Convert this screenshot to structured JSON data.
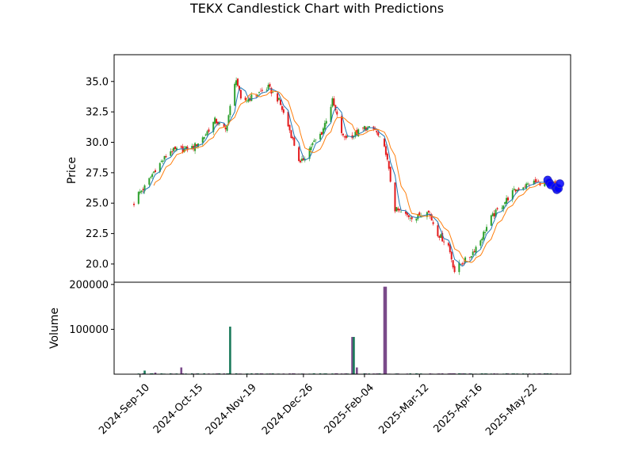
{
  "chart_data": {
    "type": "candlestick",
    "title": "TEKX Candlestick Chart with Predictions",
    "colors": {
      "up": "#2ca02c",
      "down": "#e41a1c",
      "ma_fast": "#1f77b4",
      "ma_slow": "#ff7f0e",
      "prediction": "#0000ff",
      "volume_up": "#1a7a5a",
      "volume_down": "#7a4a8a"
    },
    "price_panel": {
      "ylabel": "Price",
      "ylim": [
        18.5,
        37.2
      ],
      "yticks": [
        "20.0",
        "22.5",
        "25.0",
        "27.5",
        "30.0",
        "32.5",
        "35.0"
      ],
      "ytick_values": [
        20.0,
        22.5,
        25.0,
        27.5,
        30.0,
        32.5,
        35.0
      ]
    },
    "volume_panel": {
      "ylabel": "Volume",
      "ylim": [
        0,
        205000
      ],
      "yticks": [
        "100000",
        "200000"
      ],
      "ytick_values": [
        100000,
        200000
      ]
    },
    "x_axis": {
      "start_date": "2024-09-06",
      "end_date": "2025-06-10",
      "xlim": [
        "2024-08-24",
        "2025-06-19"
      ],
      "ticks": [
        "2024-Sep-10",
        "2024-Oct-15",
        "2024-Nov-19",
        "2024-Dec-26",
        "2025-Feb-04",
        "2025-Mar-12",
        "2025-Apr-16",
        "2025-May-22"
      ],
      "tick_dates": [
        "2024-09-10",
        "2024-10-15",
        "2024-11-19",
        "2024-12-26",
        "2025-02-04",
        "2025-03-12",
        "2025-04-16",
        "2025-05-22"
      ]
    },
    "close_anchors": [
      [
        "2024-09-06",
        25.0
      ],
      [
        "2024-09-09",
        25.8
      ],
      [
        "2024-09-13",
        26.3
      ],
      [
        "2024-09-20",
        27.8
      ],
      [
        "2024-09-30",
        29.3
      ],
      [
        "2024-10-08",
        29.4
      ],
      [
        "2024-10-15",
        29.6
      ],
      [
        "2024-10-22",
        30.5
      ],
      [
        "2024-10-29",
        31.8
      ],
      [
        "2024-11-05",
        31.0
      ],
      [
        "2024-11-12",
        35.3
      ],
      [
        "2024-11-15",
        33.4
      ],
      [
        "2024-11-19",
        33.5
      ],
      [
        "2024-11-26",
        34.0
      ],
      [
        "2024-12-03",
        34.5
      ],
      [
        "2024-12-10",
        33.4
      ],
      [
        "2024-12-17",
        31.0
      ],
      [
        "2024-12-24",
        28.2
      ],
      [
        "2024-12-31",
        29.7
      ],
      [
        "2025-01-07",
        30.8
      ],
      [
        "2025-01-14",
        33.4
      ],
      [
        "2025-01-21",
        30.4
      ],
      [
        "2025-01-28",
        30.6
      ],
      [
        "2025-02-04",
        31.2
      ],
      [
        "2025-02-11",
        31.0
      ],
      [
        "2025-02-18",
        29.2
      ],
      [
        "2025-02-24",
        24.5
      ],
      [
        "2025-03-03",
        24.0
      ],
      [
        "2025-03-10",
        23.8
      ],
      [
        "2025-03-17",
        24.5
      ],
      [
        "2025-03-24",
        22.5
      ],
      [
        "2025-03-31",
        21.5
      ],
      [
        "2025-04-04",
        19.4
      ],
      [
        "2025-04-07",
        19.9
      ],
      [
        "2025-04-14",
        20.6
      ],
      [
        "2025-04-21",
        22.0
      ],
      [
        "2025-04-28",
        23.8
      ],
      [
        "2025-05-05",
        24.8
      ],
      [
        "2025-05-12",
        25.9
      ],
      [
        "2025-05-19",
        26.4
      ],
      [
        "2025-05-26",
        26.7
      ],
      [
        "2025-06-02",
        26.7
      ],
      [
        "2025-06-09",
        26.5
      ]
    ],
    "volume_spikes": [
      [
        "2024-09-13",
        8000
      ],
      [
        "2024-09-20",
        3500
      ],
      [
        "2024-10-07",
        15000
      ],
      [
        "2024-11-08",
        106000
      ],
      [
        "2024-11-09",
        110000
      ],
      [
        "2025-01-27",
        83000
      ],
      [
        "2025-01-28",
        83000
      ],
      [
        "2025-01-30",
        15000
      ],
      [
        "2025-02-17",
        195000
      ],
      [
        "2025-02-18",
        195000
      ]
    ],
    "predictions": [
      [
        "2025-06-04",
        26.9
      ],
      [
        "2025-06-05",
        26.7
      ],
      [
        "2025-06-06",
        26.5
      ],
      [
        "2025-06-09",
        26.3
      ],
      [
        "2025-06-10",
        26.1
      ],
      [
        "2025-06-11",
        26.2
      ],
      [
        "2025-06-12",
        26.6
      ]
    ]
  }
}
